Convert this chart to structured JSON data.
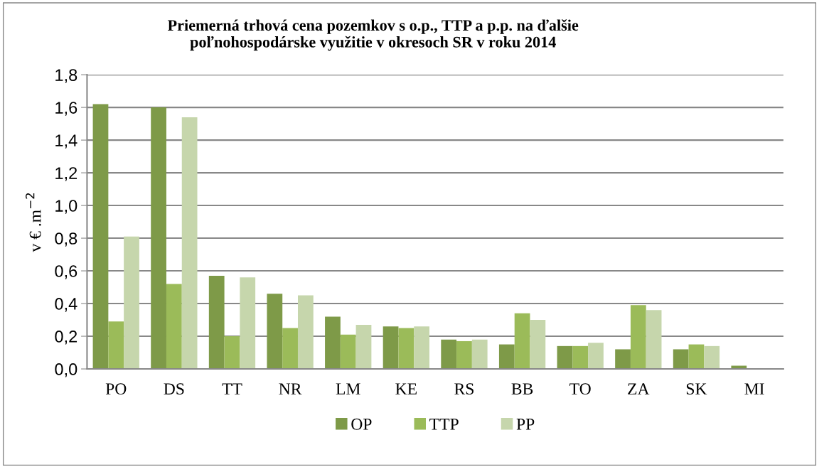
{
  "chart_data": {
    "type": "bar",
    "title": "Priemerná trhová cena pozemkov s o.p., TTP a p.p. na ďalšie\npoľnohospodárske využitie v okresoch SR v roku 2014",
    "ylabel": "v € .m$^{−2}$",
    "categories": [
      "PO",
      "DS",
      "TT",
      "NR",
      "LM",
      "KE",
      "RS",
      "BB",
      "TO",
      "ZA",
      "SK",
      "MI"
    ],
    "series": [
      {
        "name": "OP",
        "color": "#7e9a48",
        "values": [
          1.62,
          1.6,
          0.57,
          0.46,
          0.32,
          0.26,
          0.18,
          0.15,
          0.14,
          0.12,
          0.12,
          0.02
        ]
      },
      {
        "name": "TTP",
        "color": "#9bbb59",
        "values": [
          0.29,
          0.52,
          0.2,
          0.25,
          0.21,
          0.25,
          0.17,
          0.34,
          0.14,
          0.39,
          0.15,
          null
        ]
      },
      {
        "name": "PP",
        "color": "#c6d6ac",
        "values": [
          0.81,
          1.54,
          0.56,
          0.45,
          0.27,
          0.26,
          0.18,
          0.3,
          0.16,
          0.36,
          0.14,
          null
        ]
      }
    ],
    "ylim": [
      0,
      1.8
    ],
    "yticks": [
      {
        "value": 0,
        "label": "0,0"
      },
      {
        "value": 0.2,
        "label": "0,2"
      },
      {
        "value": 0.4,
        "label": "0,4"
      },
      {
        "value": 0.6,
        "label": "0,6"
      },
      {
        "value": 0.8,
        "label": "0,8"
      },
      {
        "value": 1.0,
        "label": "1,0"
      },
      {
        "value": 1.2,
        "label": "1,2"
      },
      {
        "value": 1.4,
        "label": "1,4"
      },
      {
        "value": 1.6,
        "label": "1,6"
      },
      {
        "value": 1.8,
        "label": "1,8"
      }
    ],
    "grid": "y",
    "legend": "bottom"
  }
}
